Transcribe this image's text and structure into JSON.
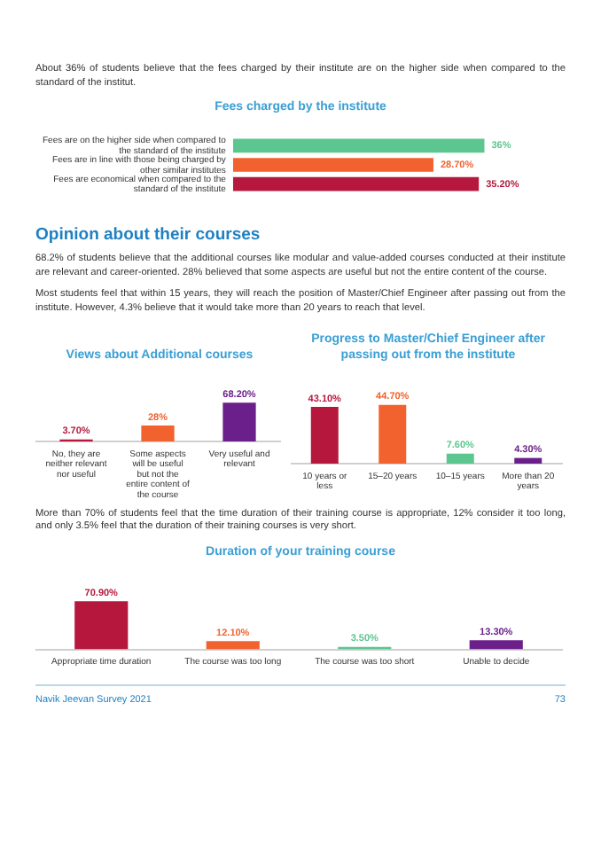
{
  "chart_data": [
    {
      "type": "bar",
      "orientation": "horizontal",
      "title": "Fees charged by the institute",
      "annotations": [
        "About 36% of students believe that the fees charged by their institute are on the higher side when compared to the standard of the institut."
      ],
      "categories": [
        "Fees are on the higher side when compared to the standard of the institute",
        "Fees are in line with those being charged by other similar institutes",
        "Fees are economical when compared to the standard of the institute"
      ],
      "values": [
        36,
        28.7,
        35.2
      ],
      "colors": [
        "#5cc690",
        "#f2622e",
        "#b5183c"
      ],
      "value_labels": [
        "36%",
        "28.70%",
        "35.20%"
      ]
    },
    {
      "type": "bar",
      "title": "Views about Additional courses",
      "annotations": [
        "Opinion about their courses",
        "68.2% of students believe that the additional courses like modular and value-added courses conducted at their institute are relevant and career-oriented. 28% believed that some aspects are useful but not the entire content of the course.",
        "Most students feel that within 15 years, they will reach the position of Master/Chief Engineer after passing out from the institute. However, 4.3% believe that it would take more than 20 years to reach that level."
      ],
      "categories": [
        "No, they are neither relevant nor useful",
        "Some aspects will be useful but not the entire content of the course",
        "Very useful and relevant"
      ],
      "values": [
        3.7,
        28,
        68.2
      ],
      "colors": [
        "#b5183c",
        "#f2622e",
        "#6b1f8a"
      ],
      "value_labels": [
        "3.70%",
        "28%",
        "68.20%"
      ]
    },
    {
      "type": "bar",
      "title": "Progress to Master/Chief Engineer after passing out from the institute",
      "categories": [
        "10 years or less",
        "15–20 years",
        "10–15 years",
        "More than 20 years"
      ],
      "values": [
        43.1,
        44.7,
        7.6,
        4.3
      ],
      "colors": [
        "#b5183c",
        "#f2622e",
        "#5cc690",
        "#6b1f8a"
      ],
      "value_labels": [
        "43.10%",
        "44.70%",
        "7.60%",
        "4.30%"
      ]
    },
    {
      "type": "bar",
      "title": "Duration of your training course",
      "annotations": [
        "More than 70% of students feel that the time duration of their training course is appropriate, 12% consider it too long, and only 3.5% feel that the duration of their training courses is very short.",
        "Navik Jeevan Survey 2021",
        "73"
      ],
      "categories": [
        "Appropriate time duration",
        "The course was too long",
        "The course was too short",
        "Unable to decide"
      ],
      "values": [
        70.9,
        12.1,
        3.5,
        13.3
      ],
      "colors": [
        "#b5183c",
        "#f2622e",
        "#5cc690",
        "#6b1f8a"
      ],
      "value_labels": [
        "70.90%",
        "12.10%",
        "3.50%",
        "13.30%"
      ]
    }
  ]
}
